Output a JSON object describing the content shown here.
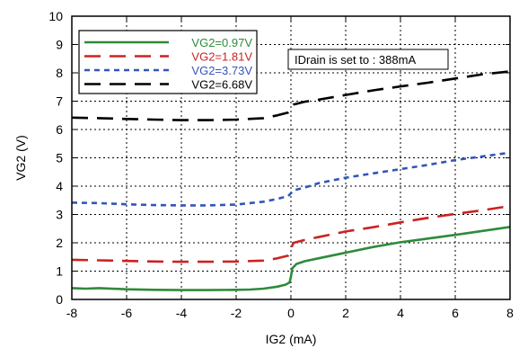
{
  "chart_data": {
    "type": "line",
    "title": "",
    "xlabel": "IG2 (mA)",
    "ylabel": "VG2 (V)",
    "xlim": [
      -8,
      8
    ],
    "ylim": [
      0,
      10
    ],
    "xticks": [
      -8,
      -6,
      -4,
      -2,
      0,
      2,
      4,
      6,
      8
    ],
    "yticks": [
      0,
      1,
      2,
      3,
      4,
      5,
      6,
      7,
      8,
      9,
      10
    ],
    "grid": true,
    "legend_position": "top-left",
    "annotation": "IDrain is set to : 388mA",
    "series": [
      {
        "name": "VG2=0.97V",
        "color": "#2e8b3a",
        "dash": "solid",
        "x": [
          -8,
          -7.5,
          -7,
          -6,
          -5,
          -4,
          -3,
          -2,
          -1.5,
          -1,
          -0.5,
          -0.2,
          -0.05,
          0,
          0.05,
          0.2,
          0.5,
          1,
          2,
          3,
          4,
          5,
          6,
          7,
          8
        ],
        "y": [
          0.4,
          0.38,
          0.4,
          0.36,
          0.34,
          0.33,
          0.33,
          0.34,
          0.35,
          0.38,
          0.45,
          0.52,
          0.6,
          0.8,
          1.1,
          1.25,
          1.35,
          1.45,
          1.65,
          1.85,
          2.02,
          2.15,
          2.28,
          2.42,
          2.56
        ]
      },
      {
        "name": "VG2=1.81V",
        "color": "#cc2222",
        "dash": "long",
        "x": [
          -8,
          -7,
          -6,
          -5,
          -4,
          -3,
          -2,
          -1,
          -0.5,
          -0.1,
          0,
          0.1,
          0.5,
          1,
          2,
          3,
          4,
          5,
          6,
          7,
          8
        ],
        "y": [
          1.4,
          1.38,
          1.36,
          1.34,
          1.33,
          1.33,
          1.34,
          1.37,
          1.45,
          1.55,
          1.8,
          2.0,
          2.1,
          2.2,
          2.4,
          2.55,
          2.72,
          2.88,
          3.02,
          3.15,
          3.3
        ]
      },
      {
        "name": "VG2=3.73V",
        "color": "#3355bb",
        "dash": "short",
        "x": [
          -8,
          -7,
          -6,
          -5,
          -4,
          -3,
          -2,
          -1,
          -0.5,
          -0.1,
          0,
          0.1,
          0.5,
          1,
          2,
          3,
          4,
          5,
          6,
          7,
          8
        ],
        "y": [
          3.42,
          3.4,
          3.36,
          3.33,
          3.32,
          3.32,
          3.35,
          3.45,
          3.55,
          3.65,
          3.75,
          3.85,
          3.95,
          4.1,
          4.3,
          4.45,
          4.6,
          4.75,
          4.92,
          5.05,
          5.18
        ]
      },
      {
        "name": "VG2=6.68V",
        "color": "#000000",
        "dash": "long",
        "x": [
          -8,
          -7,
          -6,
          -5,
          -4,
          -3,
          -2,
          -1,
          -0.5,
          -0.1,
          0,
          0.1,
          0.5,
          1,
          2,
          3,
          4,
          5,
          6,
          7,
          8
        ],
        "y": [
          6.42,
          6.4,
          6.37,
          6.35,
          6.33,
          6.33,
          6.35,
          6.4,
          6.5,
          6.6,
          6.75,
          6.88,
          6.98,
          7.05,
          7.22,
          7.38,
          7.52,
          7.65,
          7.8,
          7.95,
          8.05
        ]
      }
    ]
  }
}
